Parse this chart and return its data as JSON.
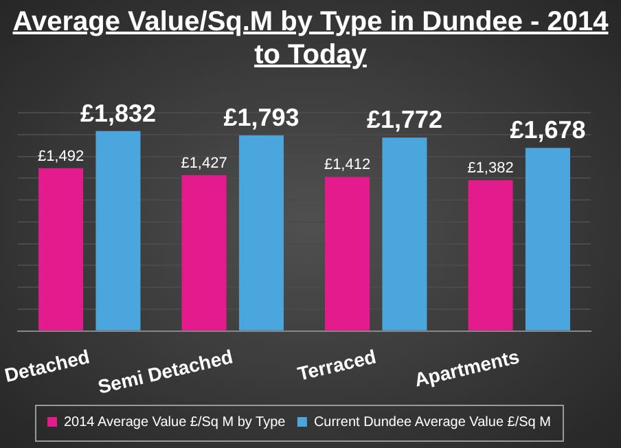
{
  "chart_data": {
    "type": "bar",
    "title": "Average Value/Sq.M by Type in Dundee - 2014 to Today",
    "categories": [
      "Detached",
      "Semi Detached",
      "Terraced",
      "Apartments"
    ],
    "series": [
      {
        "name": "2014 Average Value £/Sq M by Type",
        "color": "#e31b8d",
        "values": [
          1492,
          1427,
          1412,
          1382
        ],
        "value_labels": [
          "£1,492",
          "£1,427",
          "£1,412",
          "£1,382"
        ]
      },
      {
        "name": "Current Dundee Average Value £/Sq M",
        "color": "#4ca6de",
        "values": [
          1832,
          1793,
          1772,
          1678
        ],
        "value_labels": [
          "£1,832",
          "£1,793",
          "£1,772",
          "£1,678"
        ]
      }
    ],
    "grid": "y",
    "legend": "bottom",
    "tick_labels": "x"
  }
}
